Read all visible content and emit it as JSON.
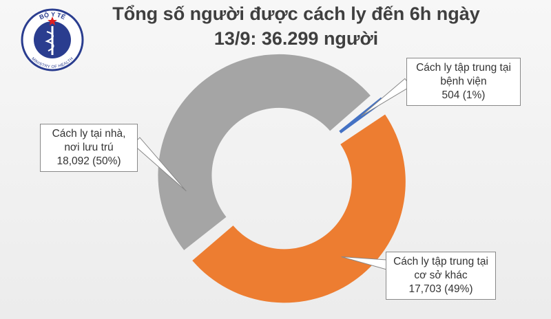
{
  "logo": {
    "top_text": "BỘ Y TẾ",
    "bottom_text": "MINISTRY OF HEALTH"
  },
  "chart_data": {
    "type": "donut",
    "title": "Tổng số người được cách ly đến 6h ngày 13/9: 36.299 người",
    "categories": [
      "Cách ly tập trung tại bệnh viện",
      "Cách ly tập trung tại cơ sở khác",
      "Cách ly tại nhà, nơi lưu trú"
    ],
    "values": [
      504,
      17703,
      18092
    ],
    "value_labels": [
      "504 (1%)",
      "17,703 (49%)",
      "18,092 (50%)"
    ],
    "colors": [
      "#4472c4",
      "#ed7d31",
      "#a5a5a5"
    ]
  }
}
